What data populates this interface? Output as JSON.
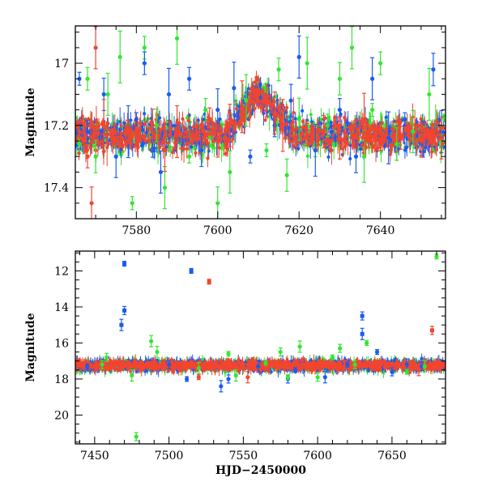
{
  "colors": {
    "blue": "#1a5cf2",
    "red": "#f2452e",
    "green": "#33e633"
  },
  "chart_data": [
    {
      "type": "scatter",
      "title": "",
      "xlabel": "",
      "ylabel": "Magnitude",
      "xlim": [
        7565,
        7656
      ],
      "ylim": [
        17.5,
        16.88
      ],
      "y_inverted": true,
      "x_ticks": [
        7580,
        7600,
        7620,
        7640
      ],
      "y_ticks": [
        17,
        17.2,
        17.4
      ],
      "x_tick_labels": [
        "7580",
        "7600",
        "7620",
        "7640"
      ],
      "y_tick_labels": [
        "17",
        "17.2",
        "17.4"
      ],
      "error_bars": true,
      "baseline_magnitude": 17.23,
      "features": [
        {
          "label": "brightening",
          "x_start": 7602,
          "x_peak": 7610,
          "x_end": 7619,
          "peak_magnitude": 17.09
        }
      ],
      "series": [
        {
          "color": "green",
          "points": [
            [
              7566,
              17.26
            ],
            [
              7568,
              17.05
            ],
            [
              7570,
              17.3
            ],
            [
              7573,
              17.1
            ],
            [
              7576,
              16.98
            ],
            [
              7579,
              17.45
            ],
            [
              7582,
              16.95
            ],
            [
              7585,
              17.2
            ],
            [
              7587,
              17.4
            ],
            [
              7590,
              16.92
            ],
            [
              7593,
              17.3
            ],
            [
              7597,
              17.15
            ],
            [
              7600,
              17.45
            ],
            [
              7603,
              17.35
            ],
            [
              7607,
              17.12
            ],
            [
              7612,
              17.28
            ],
            [
              7615,
              17.02
            ],
            [
              7617,
              17.36
            ],
            [
              7620,
              17.18
            ],
            [
              7622,
              17.0
            ],
            [
              7624,
              17.28
            ],
            [
              7627,
              17.2
            ],
            [
              7630,
              17.05
            ],
            [
              7633,
              16.95
            ],
            [
              7636,
              17.3
            ],
            [
              7638,
              17.15
            ],
            [
              7640,
              17.0
            ],
            [
              7644,
              17.26
            ],
            [
              7648,
              17.22
            ],
            [
              7652,
              17.1
            ],
            [
              7655,
              17.25
            ]
          ]
        },
        {
          "color": "blue",
          "points": [
            [
              7566,
              17.05
            ],
            [
              7568,
              17.22
            ],
            [
              7572,
              17.1
            ],
            [
              7575,
              17.3
            ],
            [
              7578,
              17.22
            ],
            [
              7580,
              17.18
            ],
            [
              7582,
              17.0
            ],
            [
              7584,
              17.25
            ],
            [
              7586,
              17.35
            ],
            [
              7588,
              17.1
            ],
            [
              7590,
              17.22
            ],
            [
              7593,
              17.05
            ],
            [
              7596,
              17.28
            ],
            [
              7600,
              17.15
            ],
            [
              7604,
              17.08
            ],
            [
              7608,
              17.3
            ],
            [
              7614,
              17.2
            ],
            [
              7618,
              17.12
            ],
            [
              7620,
              16.98
            ],
            [
              7624,
              17.28
            ],
            [
              7628,
              17.22
            ],
            [
              7630,
              17.15
            ],
            [
              7634,
              17.3
            ],
            [
              7638,
              17.05
            ],
            [
              7642,
              17.24
            ],
            [
              7646,
              17.18
            ],
            [
              7650,
              17.26
            ],
            [
              7653,
              17.02
            ],
            [
              7655,
              17.22
            ]
          ]
        },
        {
          "color": "red",
          "points": [
            [
              7566,
              17.22
            ],
            [
              7568,
              17.3
            ],
            [
              7569,
              17.45
            ],
            [
              7570,
              16.95
            ],
            [
              7572,
              17.2
            ],
            [
              7575,
              17.25
            ],
            [
              7578,
              17.22
            ],
            [
              7584,
              17.2
            ],
            [
              7587,
              17.28
            ],
            [
              7590,
              17.22
            ],
            [
              7594,
              17.24
            ],
            [
              7598,
              17.18
            ],
            [
              7600,
              17.25
            ],
            [
              7603,
              17.2
            ],
            [
              7606,
              17.14
            ],
            [
              7608,
              17.1
            ],
            [
              7610,
              17.09
            ],
            [
              7612,
              17.12
            ],
            [
              7614,
              17.16
            ],
            [
              7616,
              17.2
            ],
            [
              7619,
              17.24
            ],
            [
              7622,
              17.23
            ],
            [
              7626,
              17.22
            ],
            [
              7630,
              17.24
            ],
            [
              7636,
              17.18
            ],
            [
              7640,
              17.26
            ],
            [
              7645,
              17.24
            ],
            [
              7650,
              17.25
            ],
            [
              7655,
              17.24
            ]
          ]
        }
      ]
    },
    {
      "type": "scatter",
      "title": "",
      "xlabel": "HJD−2450000",
      "ylabel": "Magnitude",
      "xlim": [
        7437,
        7686
      ],
      "ylim": [
        21.6,
        10.9
      ],
      "y_inverted": true,
      "x_ticks": [
        7450,
        7500,
        7550,
        7600,
        7650
      ],
      "y_ticks": [
        12,
        14,
        16,
        18,
        20
      ],
      "x_tick_labels": [
        "7450",
        "7500",
        "7550",
        "7600",
        "7650"
      ],
      "y_tick_labels": [
        "12",
        "14",
        "16",
        "18",
        "20"
      ],
      "error_bars": true,
      "baseline_magnitude": 17.25,
      "series": [
        {
          "color": "blue",
          "points": [
            [
              7470,
              11.6
            ],
            [
              7470,
              14.2
            ],
            [
              7468,
              15.0
            ],
            [
              7515,
              12.0
            ],
            [
              7630,
              14.5
            ],
            [
              7630,
              15.5
            ],
            [
              7640,
              16.5
            ],
            [
              7540,
              18.0
            ],
            [
              7535,
              18.4
            ],
            [
              7512,
              18.0
            ],
            [
              7580,
              18.0
            ],
            [
              7605,
              17.9
            ],
            [
              7585,
              17.5
            ],
            [
              7650,
              17.6
            ],
            [
              7660,
              17.2
            ],
            [
              7445,
              17.3
            ],
            [
              7500,
              17.2
            ],
            [
              7560,
              17.3
            ],
            [
              7620,
              17.2
            ],
            [
              7670,
              17.3
            ]
          ]
        },
        {
          "color": "red",
          "points": [
            [
              7527,
              12.6
            ],
            [
              7677,
              15.3
            ],
            [
              7553,
              17.9
            ],
            [
              7520,
              17.9
            ],
            [
              7480,
              17.3
            ],
            [
              7540,
              17.2
            ],
            [
              7600,
              17.3
            ],
            [
              7640,
              17.2
            ],
            [
              7668,
              17.5
            ]
          ]
        },
        {
          "color": "green",
          "points": [
            [
              7680,
              11.2
            ],
            [
              7478,
              21.2
            ],
            [
              7488,
              15.9
            ],
            [
              7633,
              16.0
            ],
            [
              7458,
              16.8
            ],
            [
              7492,
              16.5
            ],
            [
              7540,
              16.6
            ],
            [
              7575,
              16.5
            ],
            [
              7588,
              16.2
            ],
            [
              7610,
              16.8
            ],
            [
              7615,
              16.3
            ],
            [
              7545,
              17.8
            ],
            [
              7580,
              17.9
            ],
            [
              7600,
              17.9
            ],
            [
              7475,
              17.8
            ],
            [
              7660,
              17.6
            ],
            [
              7455,
              17.2
            ],
            [
              7520,
              17.4
            ],
            [
              7565,
              17.1
            ],
            [
              7625,
              17.2
            ],
            [
              7672,
              17.3
            ]
          ]
        }
      ]
    }
  ]
}
